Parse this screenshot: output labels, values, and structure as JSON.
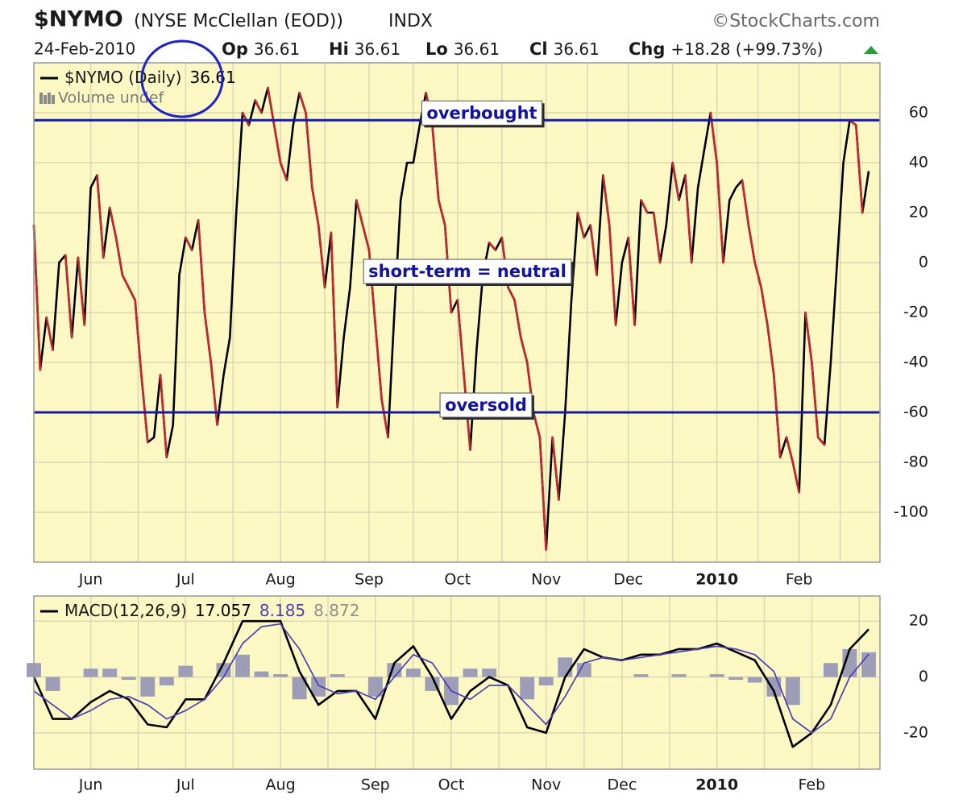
{
  "header": {
    "symbol": "$NYMO",
    "name": "(NYSE McClellan (EOD))",
    "exchange": "INDX",
    "source": "©StockCharts.com",
    "date": "24-Feb-2010",
    "quote": [
      {
        "label": "Op",
        "value": "36.61"
      },
      {
        "label": "Hi",
        "value": "36.61"
      },
      {
        "label": "Lo",
        "value": "36.61"
      },
      {
        "label": "Cl",
        "value": "36.61"
      },
      {
        "label": "Chg",
        "value": "+18.28 (+99.73%)"
      }
    ]
  },
  "chart_data": [
    {
      "type": "line",
      "background": "#fbf8c4",
      "grid": true,
      "grid_color": "#dcd8b2",
      "reference_color": "#1a1a9c",
      "ylim": [
        -120,
        80
      ],
      "yticks": [
        -100,
        -80,
        -60,
        -40,
        -20,
        0,
        20,
        40,
        60
      ],
      "categories": [
        null,
        null,
        null,
        null,
        null,
        null,
        null,
        null,
        null,
        "Jun",
        null,
        null,
        null,
        null,
        null,
        null,
        null,
        null,
        null,
        null,
        null,
        null,
        null,
        null,
        "Jul",
        null,
        null,
        null,
        null,
        null,
        null,
        null,
        null,
        null,
        null,
        null,
        null,
        null,
        null,
        "Aug",
        null,
        null,
        null,
        null,
        null,
        null,
        null,
        null,
        null,
        null,
        null,
        null,
        null,
        "Sep",
        null,
        null,
        null,
        null,
        null,
        null,
        null,
        null,
        null,
        null,
        null,
        null,
        null,
        "Oct",
        null,
        null,
        null,
        null,
        null,
        null,
        null,
        null,
        null,
        null,
        null,
        null,
        null,
        "Nov",
        null,
        null,
        null,
        null,
        null,
        null,
        null,
        null,
        null,
        null,
        null,
        null,
        "Dec",
        null,
        null,
        null,
        null,
        null,
        null,
        null,
        null,
        null,
        null,
        null,
        null,
        null,
        "2010",
        null,
        null,
        null,
        null,
        null,
        null,
        null,
        null,
        null,
        null,
        null,
        null,
        "Feb",
        null,
        null,
        null,
        null,
        null,
        null,
        null,
        null,
        null,
        null,
        null
      ],
      "series": [
        {
          "name": "$NYMO (Daily)",
          "color": "#000000",
          "down_color": "#c4262e",
          "values": [
            15,
            -43,
            -22,
            -35,
            0,
            3,
            -30,
            2,
            -25,
            30,
            35,
            2,
            22,
            10,
            -5,
            -10,
            -15,
            -45,
            -72,
            -70,
            -45,
            -78,
            -65,
            -5,
            10,
            5,
            17,
            -20,
            -40,
            -65,
            -45,
            -30,
            20,
            60,
            55,
            65,
            60,
            70,
            55,
            40,
            33,
            55,
            68,
            60,
            30,
            15,
            -10,
            12,
            -58,
            -30,
            -10,
            25,
            15,
            5,
            -25,
            -55,
            -70,
            -20,
            25,
            40,
            40,
            55,
            68,
            55,
            25,
            15,
            -20,
            -15,
            -45,
            -75,
            -35,
            -5,
            8,
            5,
            10,
            -10,
            -15,
            -30,
            -40,
            -60,
            -70,
            -115,
            -70,
            -95,
            -60,
            -15,
            20,
            10,
            15,
            -5,
            35,
            15,
            -25,
            0,
            10,
            -25,
            25,
            20,
            20,
            0,
            15,
            40,
            25,
            35,
            0,
            30,
            45,
            60,
            40,
            0,
            25,
            30,
            33,
            15,
            0,
            -10,
            -25,
            -45,
            -78,
            -70,
            -80,
            -92,
            -20,
            -40,
            -70,
            -73,
            -40,
            0,
            40,
            57,
            55,
            20,
            36.61
          ]
        }
      ],
      "volume_label": "Volume undef",
      "reference_lines": [
        {
          "value": 57,
          "label": "overbought"
        },
        {
          "value": -60,
          "label": "oversold"
        }
      ],
      "annotations": [
        {
          "text": "short-term = neutral"
        }
      ]
    },
    {
      "type": "line",
      "background": "#fbf8c4",
      "grid": true,
      "grid_color": "#dcd8b2",
      "ylim": [
        -33,
        29
      ],
      "yticks": [
        -20,
        0,
        20
      ],
      "categories": [
        null,
        null,
        null,
        "Jun",
        null,
        null,
        null,
        null,
        "Jul",
        null,
        null,
        null,
        null,
        "Aug",
        null,
        null,
        null,
        null,
        "Sep",
        null,
        null,
        null,
        "Oct",
        null,
        null,
        null,
        null,
        "Nov",
        null,
        null,
        null,
        "Dec",
        null,
        null,
        null,
        null,
        "2010",
        null,
        null,
        null,
        null,
        "Feb",
        null,
        null,
        null
      ],
      "series": [
        {
          "name": "MACD(12,26,9)",
          "color": "#000000",
          "values": [
            0,
            -15,
            -15,
            -9,
            -5,
            -8,
            -17,
            -18,
            -8,
            -8,
            5,
            20,
            20,
            20,
            2,
            -10,
            -5,
            -5,
            -15,
            5,
            11,
            0,
            -15,
            -5,
            0,
            -3,
            -18,
            -20,
            0,
            10,
            7,
            6,
            8,
            8,
            10,
            10,
            12,
            9,
            6,
            -5,
            -25,
            -20,
            -10,
            10,
            17.057
          ]
        },
        {
          "color": "#4b3fb4",
          "values": [
            -5,
            -10,
            -15,
            -12,
            -8,
            -7,
            -10,
            -15,
            -12,
            -8,
            0,
            12,
            18,
            19,
            10,
            -3,
            -6,
            -5,
            -8,
            0,
            8,
            5,
            -5,
            -8,
            -3,
            -3,
            -10,
            -17,
            -7,
            5,
            7,
            6,
            7,
            8,
            9,
            10,
            11,
            10,
            8,
            2,
            -15,
            -20,
            -15,
            0,
            8.185
          ]
        },
        {
          "type": "bar",
          "color": "#9d9db8",
          "values": [
            5,
            -5,
            0,
            3,
            3,
            -1,
            -7,
            -3,
            4,
            0,
            5,
            8,
            2,
            1,
            -8,
            -7,
            1,
            0,
            -7,
            5,
            3,
            -5,
            -10,
            3,
            3,
            0,
            -8,
            -3,
            7,
            5,
            0,
            0,
            1,
            0,
            1,
            0,
            1,
            -1,
            -2,
            -7,
            -10,
            0,
            5,
            10,
            8.872
          ]
        }
      ]
    }
  ]
}
